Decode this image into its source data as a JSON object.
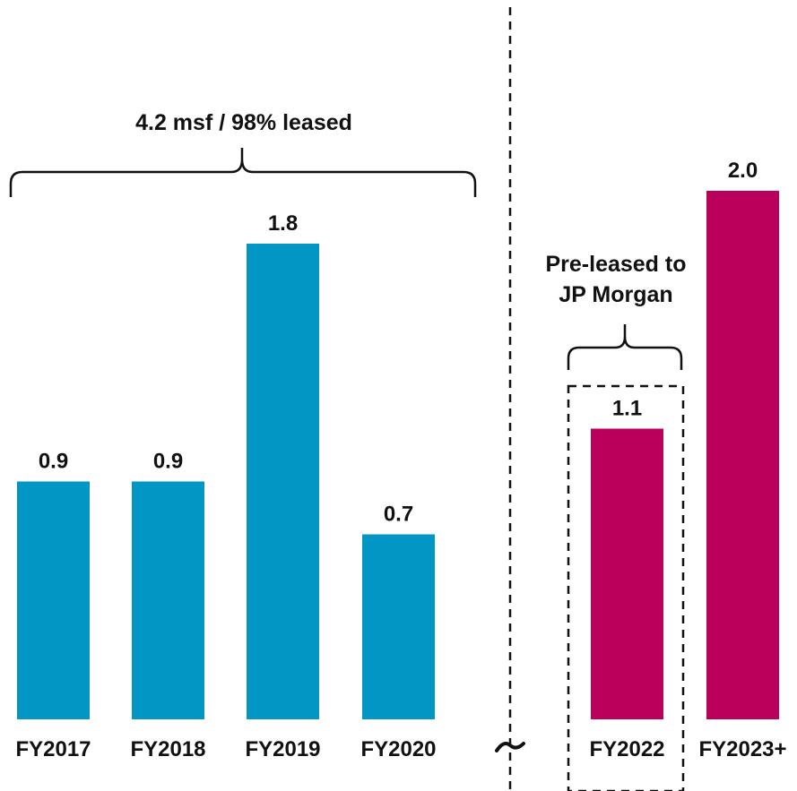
{
  "chart_data": {
    "type": "bar",
    "categories": [
      "FY2017",
      "FY2018",
      "FY2019",
      "FY2020",
      "FY2022",
      "FY2023+"
    ],
    "values": [
      0.9,
      0.9,
      1.8,
      0.7,
      1.1,
      2.0
    ],
    "value_labels": [
      "0.9",
      "0.9",
      "1.8",
      "0.7",
      "1.1",
      "2.0"
    ],
    "bar_colors": [
      "#0196c4",
      "#0196c4",
      "#0196c4",
      "#0196c4",
      "#bb005c",
      "#bb005c"
    ],
    "ylim": [
      0,
      2.0
    ],
    "grid": false,
    "legend": "none",
    "annotations": {
      "group_left": "4.2 msf / 98% leased",
      "group_right_line1": "Pre-leased to",
      "group_right_line2": "JP Morgan"
    }
  }
}
